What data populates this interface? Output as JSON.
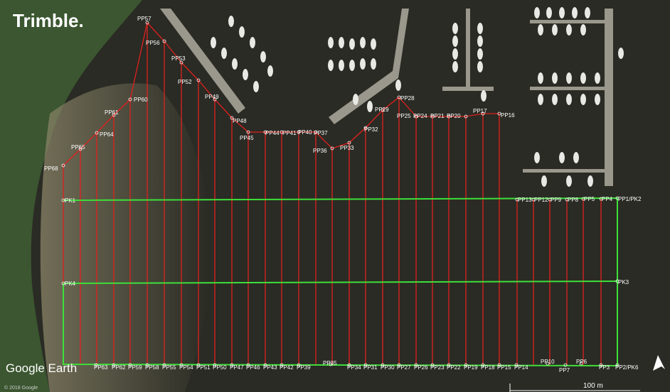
{
  "logo": "Trimble.",
  "watermark": "Google Earth",
  "copyright": "© 2018 Google",
  "scale": "100 m",
  "top_points": [
    "PP68",
    "PP65",
    "PP64",
    "PP61",
    "PP60",
    "PP57",
    "PP56",
    "PP53",
    "PP52",
    "PP49",
    "PP48",
    "PP45",
    "PP44",
    "PP41",
    "PP40",
    "PP37",
    "PP36",
    "PP33",
    "PP32",
    "PP29",
    "PP28",
    "PP25",
    "PP24",
    "PP21",
    "PP20",
    "PP17",
    "PP16"
  ],
  "row_points": [
    "PK1",
    "PP13",
    "PP12",
    "PP9",
    "PP8",
    "PP5",
    "PP4",
    "PP1/PK2",
    "PK4",
    "PK3"
  ],
  "bottom_points": [
    "PP63",
    "PP62",
    "PP59",
    "PP58",
    "PP55",
    "PP54",
    "PP51",
    "PP50",
    "PP47",
    "PP46",
    "PP43",
    "PP42",
    "PP39",
    "PP35",
    "PP34",
    "PP31",
    "PP30",
    "PP27",
    "PP26",
    "PP23",
    "PP22",
    "PP19",
    "PP18",
    "PP15",
    "PP14",
    "PP10",
    "PP7",
    "PP6",
    "PP3",
    "PP2/PK6"
  ]
}
